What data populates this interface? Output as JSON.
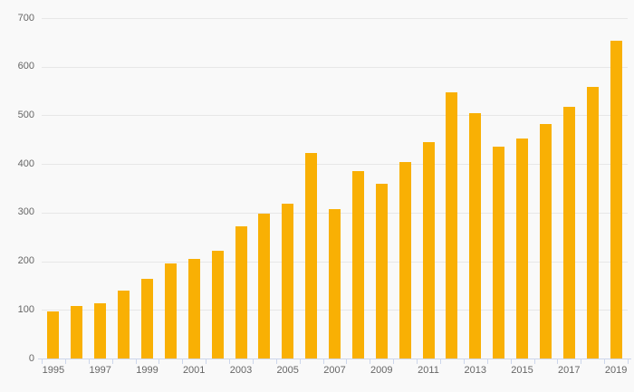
{
  "chart_data": {
    "type": "bar",
    "title": "",
    "xlabel": "",
    "ylabel": "",
    "categories": [
      "1995",
      "1996",
      "1997",
      "1998",
      "1999",
      "2000",
      "2001",
      "2002",
      "2003",
      "2004",
      "2005",
      "2006",
      "2007",
      "2008",
      "2009",
      "2010",
      "2011",
      "2012",
      "2013",
      "2014",
      "2015",
      "2016",
      "2017",
      "2018",
      "2019"
    ],
    "values": [
      97,
      109,
      114,
      140,
      164,
      196,
      205,
      221,
      272,
      298,
      318,
      423,
      308,
      385,
      360,
      404,
      445,
      548,
      505,
      436,
      453,
      482,
      517,
      558,
      654
    ],
    "ylim": [
      0,
      700
    ],
    "yticks": [
      0,
      100,
      200,
      300,
      400,
      500,
      600,
      700
    ],
    "ytick_labels": [
      "0",
      "100",
      "200",
      "300",
      "400",
      "500",
      "600",
      "700"
    ],
    "xtick_labels": [
      "1995",
      "1997",
      "1999",
      "2001",
      "2003",
      "2005",
      "2007",
      "2009",
      "2011",
      "2013",
      "2015",
      "2017",
      "2019"
    ],
    "x_label_every": 2,
    "grid": true,
    "legend": "none",
    "colors": {
      "bar": "#f9b004",
      "background": "#f9f9f9",
      "gridline": "#e7e7e7",
      "axis_line": "#ccd6eb",
      "label": "#666666"
    }
  }
}
